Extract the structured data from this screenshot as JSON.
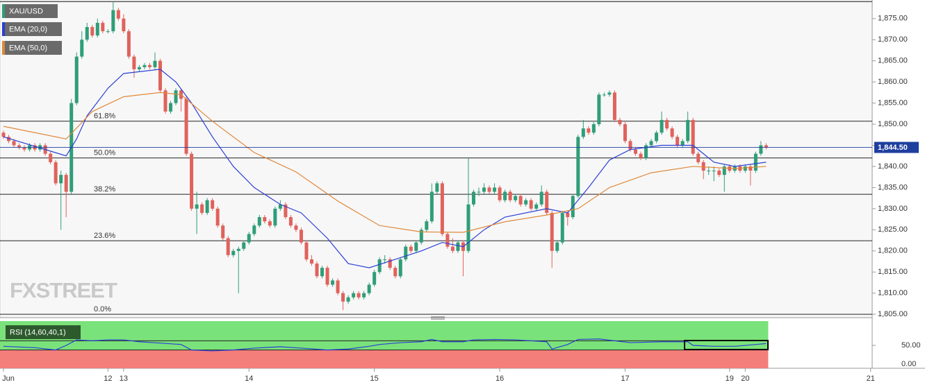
{
  "chart_data": {
    "type": "candlestick",
    "symbol": "XAU/USD",
    "colors": {
      "up": "#2f9e78",
      "down": "#e0625c",
      "symbol": "#2f9e78"
    },
    "candles": [
      [
        1848,
        1848.5,
        1846.5,
        1847
      ],
      [
        1847,
        1847.5,
        1845.5,
        1846
      ],
      [
        1846,
        1846.5,
        1844.5,
        1845
      ],
      [
        1845,
        1845.5,
        1844,
        1844.5
      ],
      [
        1844.5,
        1845,
        1843.5,
        1844
      ],
      [
        1844,
        1845.5,
        1843.5,
        1845
      ],
      [
        1845,
        1845.5,
        1843.5,
        1844
      ],
      [
        1844,
        1845.5,
        1843.5,
        1845
      ],
      [
        1845,
        1845.5,
        1842.5,
        1843
      ],
      [
        1843,
        1843.5,
        1840.5,
        1841
      ],
      [
        1841,
        1841.5,
        1835.5,
        1836
      ],
      [
        1836,
        1839,
        1825,
        1838
      ],
      [
        1838,
        1838.5,
        1828,
        1834
      ],
      [
        1834,
        1856,
        1833.5,
        1855
      ],
      [
        1855,
        1867,
        1854.5,
        1866
      ],
      [
        1866,
        1872,
        1865.5,
        1870
      ],
      [
        1870,
        1874,
        1869.5,
        1873
      ],
      [
        1873,
        1873.5,
        1870.5,
        1871
      ],
      [
        1871,
        1875,
        1870.5,
        1874
      ],
      [
        1874,
        1874.5,
        1871.5,
        1872
      ],
      [
        1872,
        1872.5,
        1871.5,
        1872
      ],
      [
        1872,
        1879,
        1871.5,
        1877
      ],
      [
        1877,
        1877.5,
        1874.5,
        1875
      ],
      [
        1875,
        1876,
        1871.5,
        1872
      ],
      [
        1872,
        1872.5,
        1865.5,
        1866
      ],
      [
        1866,
        1866.5,
        1861,
        1863
      ],
      [
        1863,
        1864,
        1862.5,
        1863.5
      ],
      [
        1863.5,
        1864.5,
        1863,
        1864
      ],
      [
        1864,
        1864.5,
        1863,
        1863.5
      ],
      [
        1863.5,
        1867,
        1863,
        1865
      ],
      [
        1865,
        1865.5,
        1857.5,
        1858
      ],
      [
        1858,
        1858.5,
        1852.5,
        1853
      ],
      [
        1853,
        1855.5,
        1852.5,
        1855
      ],
      [
        1855,
        1858.5,
        1854.5,
        1858
      ],
      [
        1858,
        1858.5,
        1853,
        1856
      ],
      [
        1856,
        1856.5,
        1842.5,
        1843
      ],
      [
        1843,
        1843.5,
        1829.5,
        1830
      ],
      [
        1830,
        1834,
        1824,
        1831
      ],
      [
        1831,
        1831.5,
        1828.5,
        1829
      ],
      [
        1829,
        1832.5,
        1828.5,
        1832
      ],
      [
        1832,
        1832.5,
        1829.5,
        1830
      ],
      [
        1830,
        1830.5,
        1825.5,
        1826
      ],
      [
        1826,
        1826.5,
        1822.5,
        1823
      ],
      [
        1823,
        1823.5,
        1818.5,
        1819
      ],
      [
        1819,
        1820.5,
        1818.5,
        1820
      ],
      [
        1820,
        1821,
        1810,
        1820.5
      ],
      [
        1820.5,
        1822.5,
        1820,
        1822
      ],
      [
        1822,
        1824.5,
        1821.5,
        1824
      ],
      [
        1824,
        1826.5,
        1823.5,
        1826
      ],
      [
        1826,
        1828.5,
        1825.5,
        1828
      ],
      [
        1828,
        1828.5,
        1826.5,
        1827
      ],
      [
        1827,
        1827.5,
        1825.5,
        1826
      ],
      [
        1826,
        1830.5,
        1825.5,
        1830
      ],
      [
        1830,
        1832,
        1829.5,
        1831
      ],
      [
        1831,
        1831.5,
        1827.5,
        1828
      ],
      [
        1828,
        1828.5,
        1825.5,
        1826
      ],
      [
        1826,
        1826.5,
        1824.5,
        1825
      ],
      [
        1825,
        1825.5,
        1821.5,
        1822
      ],
      [
        1822,
        1822.5,
        1817.5,
        1818
      ],
      [
        1818,
        1819,
        1816.5,
        1817
      ],
      [
        1817,
        1817.5,
        1813.5,
        1814
      ],
      [
        1814,
        1816.5,
        1813.5,
        1816
      ],
      [
        1816,
        1816.5,
        1811.5,
        1812
      ],
      [
        1812,
        1813.5,
        1811.5,
        1813
      ],
      [
        1813,
        1813.5,
        1809.5,
        1810
      ],
      [
        1810,
        1810.5,
        1806,
        1808
      ],
      [
        1808,
        1809.5,
        1807.5,
        1809
      ],
      [
        1809,
        1810.5,
        1808.5,
        1810
      ],
      [
        1810,
        1810.5,
        1808.5,
        1809
      ],
      [
        1809,
        1810.5,
        1808.5,
        1810
      ],
      [
        1810,
        1812.5,
        1809.5,
        1812
      ],
      [
        1812,
        1815.5,
        1811.5,
        1815
      ],
      [
        1815,
        1818.5,
        1814.5,
        1818
      ],
      [
        1818,
        1819,
        1817,
        1818
      ],
      [
        1818,
        1818.5,
        1815.5,
        1816
      ],
      [
        1816,
        1816.5,
        1813.5,
        1814
      ],
      [
        1814,
        1818.5,
        1813.5,
        1818
      ],
      [
        1818,
        1821.5,
        1817.5,
        1821
      ],
      [
        1821,
        1821.5,
        1819.5,
        1820
      ],
      [
        1820,
        1822.5,
        1819.5,
        1822
      ],
      [
        1822,
        1825.5,
        1821.5,
        1825
      ],
      [
        1825,
        1827.5,
        1824.5,
        1827
      ],
      [
        1827,
        1836,
        1826.5,
        1834
      ],
      [
        1834,
        1836.5,
        1833.5,
        1836
      ],
      [
        1836,
        1836.5,
        1823.5,
        1824
      ],
      [
        1824,
        1824.5,
        1820.5,
        1821
      ],
      [
        1821,
        1823,
        1819.5,
        1820
      ],
      [
        1820,
        1822.5,
        1819.5,
        1822
      ],
      [
        1822,
        1822.5,
        1814,
        1820
      ],
      [
        1820,
        1842,
        1819.5,
        1831
      ],
      [
        1831,
        1834.5,
        1830.5,
        1834
      ],
      [
        1834,
        1835,
        1833,
        1834
      ],
      [
        1834,
        1836,
        1833.5,
        1835
      ],
      [
        1835,
        1835.5,
        1833.5,
        1834
      ],
      [
        1834,
        1836,
        1833.5,
        1835
      ],
      [
        1835,
        1835.5,
        1831.5,
        1832
      ],
      [
        1832,
        1834.5,
        1831.5,
        1834
      ],
      [
        1834,
        1834.5,
        1831.5,
        1832
      ],
      [
        1832,
        1833.5,
        1831.5,
        1833
      ],
      [
        1833,
        1833.5,
        1830.5,
        1831
      ],
      [
        1831,
        1832.5,
        1830.5,
        1832
      ],
      [
        1832,
        1832.5,
        1829.5,
        1830
      ],
      [
        1830,
        1831.5,
        1829.5,
        1831
      ],
      [
        1831,
        1835.5,
        1830.5,
        1834
      ],
      [
        1834,
        1834.5,
        1828.5,
        1829
      ],
      [
        1829,
        1829.5,
        1816,
        1820
      ],
      [
        1820,
        1822.5,
        1819.5,
        1822
      ],
      [
        1822,
        1829.5,
        1821.5,
        1829
      ],
      [
        1829,
        1829.5,
        1826,
        1828
      ],
      [
        1828,
        1833.5,
        1827.5,
        1833
      ],
      [
        1833,
        1847.5,
        1832.5,
        1847
      ],
      [
        1847,
        1851,
        1846.5,
        1849
      ],
      [
        1849,
        1849.5,
        1847.5,
        1848
      ],
      [
        1848,
        1850.5,
        1847.5,
        1850
      ],
      [
        1850,
        1857.5,
        1849.5,
        1857
      ],
      [
        1857,
        1857.5,
        1856.5,
        1857
      ],
      [
        1857,
        1858,
        1856.5,
        1857.5
      ],
      [
        1857.5,
        1858,
        1850.5,
        1851
      ],
      [
        1851,
        1851.5,
        1849.5,
        1850
      ],
      [
        1850,
        1850.5,
        1845.5,
        1846
      ],
      [
        1846,
        1846.5,
        1843.5,
        1844
      ],
      [
        1844,
        1844.5,
        1842.5,
        1843
      ],
      [
        1843,
        1843.5,
        1841.5,
        1842
      ],
      [
        1842,
        1845.5,
        1841.5,
        1845
      ],
      [
        1845,
        1846.5,
        1844.5,
        1846
      ],
      [
        1846,
        1848.5,
        1845.5,
        1848
      ],
      [
        1848,
        1853,
        1847.5,
        1851
      ],
      [
        1851,
        1851.5,
        1848.5,
        1849
      ],
      [
        1849,
        1849.5,
        1846.5,
        1847
      ],
      [
        1847,
        1847.5,
        1844.5,
        1845
      ],
      [
        1845,
        1846.5,
        1844.5,
        1846
      ],
      [
        1846,
        1853,
        1845.5,
        1851
      ],
      [
        1851,
        1851.5,
        1842.5,
        1843
      ],
      [
        1843,
        1843.5,
        1840.5,
        1841
      ],
      [
        1841,
        1841.5,
        1837,
        1839
      ],
      [
        1839,
        1840,
        1838,
        1839
      ],
      [
        1839,
        1840,
        1836.5,
        1839
      ],
      [
        1839,
        1839.5,
        1837.5,
        1838
      ],
      [
        1838,
        1840.5,
        1834,
        1840
      ],
      [
        1840,
        1840.5,
        1838.5,
        1839
      ],
      [
        1839,
        1840.5,
        1838.5,
        1840
      ],
      [
        1840,
        1840.5,
        1838.5,
        1839
      ],
      [
        1839,
        1840.5,
        1838.5,
        1840
      ],
      [
        1840,
        1840.5,
        1835.5,
        1839
      ],
      [
        1839,
        1843.5,
        1838.5,
        1843
      ],
      [
        1843,
        1846,
        1842.5,
        1845
      ],
      [
        1845,
        1845.5,
        1844,
        1844.5
      ]
    ],
    "xlim": [
      -0.665,
      166.3
    ],
    "xticks": [
      {
        "value": 0,
        "label": "Jun"
      },
      {
        "value": 20,
        "label": "12"
      },
      {
        "value": 23,
        "label": "13"
      },
      {
        "value": 47,
        "label": "14"
      },
      {
        "value": 71,
        "label": "15"
      },
      {
        "value": 95,
        "label": "16"
      },
      {
        "value": 119,
        "label": "17"
      },
      {
        "value": 139,
        "label": "19"
      },
      {
        "value": 142,
        "label": "20"
      },
      {
        "value": 166,
        "label": "21"
      }
    ],
    "ylim": [
      1804.2,
      1879.4
    ],
    "yticks": [
      {
        "value": 1805,
        "label": "1,805.00"
      },
      {
        "value": 1810,
        "label": "1,810.00"
      },
      {
        "value": 1815,
        "label": "1,815.00"
      },
      {
        "value": 1820,
        "label": "1,820.00"
      },
      {
        "value": 1825,
        "label": "1,825.00"
      },
      {
        "value": 1830,
        "label": "1,830.00"
      },
      {
        "value": 1835,
        "label": "1,835.00"
      },
      {
        "value": 1840,
        "label": "1,840.00"
      },
      {
        "value": 1845,
        "label": "1,845.00"
      },
      {
        "value": 1850,
        "label": "1,850.00"
      },
      {
        "value": 1855,
        "label": "1,855.00"
      },
      {
        "value": 1860,
        "label": "1,860.00"
      },
      {
        "value": 1865,
        "label": "1,865.00"
      },
      {
        "value": 1870,
        "label": "1,870.00"
      },
      {
        "value": 1875,
        "label": "1,875.00"
      }
    ],
    "series": [
      {
        "name": "EMA (20,0)",
        "color": "#2a3fd4",
        "x": [
          0,
          12,
          14,
          16,
          20,
          23,
          30,
          33,
          36,
          40,
          44,
          48,
          53,
          57,
          62,
          66,
          70,
          75,
          80,
          84,
          88,
          92,
          96,
          104,
          108,
          112,
          116,
          120,
          126,
          132,
          136,
          140,
          146
        ],
        "values": [
          1847,
          1842.5,
          1846.5,
          1852,
          1858.5,
          1862,
          1863,
          1860,
          1855,
          1847,
          1840,
          1835,
          1831,
          1829,
          1823,
          1817,
          1816,
          1818,
          1820,
          1822,
          1821,
          1825,
          1828,
          1830,
          1829,
          1835,
          1841.5,
          1844,
          1845,
          1845,
          1841,
          1840,
          1841
        ]
      },
      {
        "name": "EMA (50,0)",
        "color": "#e0883a",
        "x": [
          0,
          12,
          17,
          23,
          30,
          34,
          40,
          48,
          56,
          64,
          72,
          80,
          88,
          96,
          104,
          110,
          116,
          124,
          132,
          140,
          146
        ],
        "values": [
          1849.5,
          1846.5,
          1853,
          1856.5,
          1857.5,
          1857,
          1850.7,
          1843.3,
          1838.7,
          1831.8,
          1826,
          1824.5,
          1824.4,
          1826.9,
          1828.5,
          1830,
          1835,
          1838.5,
          1840,
          1839.5,
          1840
        ]
      }
    ],
    "fib": {
      "values": [
        1879,
        1850.7,
        1842,
        1833.4,
        1822.4,
        1805
      ],
      "labels": [
        null,
        "61.8%",
        "50.0%",
        "38.2%",
        "23.6%",
        "0.0%"
      ]
    },
    "last_price": {
      "value": 1844.5,
      "label": "1,844.50",
      "color": "#1f3f9e"
    },
    "watermark": "FXSTREET",
    "rsi": {
      "name": "RSI (14,60,40,1)",
      "color": "#2a3fd4",
      "upper": 60,
      "lower": 40,
      "x": [
        0,
        6,
        10,
        12,
        14,
        17,
        20,
        23,
        26,
        30,
        34,
        36,
        40,
        44,
        48,
        53,
        57,
        62,
        66,
        70,
        72,
        76,
        80,
        82,
        84,
        88,
        90,
        94,
        98,
        104,
        105,
        108,
        110,
        114,
        117,
        120,
        126,
        131,
        132,
        136,
        140,
        144,
        146
      ],
      "values": [
        48,
        45,
        40,
        50,
        62,
        60,
        62,
        62,
        58,
        55,
        52,
        40,
        38,
        40,
        44,
        47,
        44,
        40,
        42,
        48,
        52,
        56,
        58,
        63,
        58,
        58,
        62,
        63,
        62,
        58,
        42,
        52,
        63,
        64,
        60,
        56,
        58,
        58,
        50,
        48,
        48,
        52,
        54
      ],
      "ylim": [
        0,
        100
      ],
      "yticks": [
        {
          "value": 0,
          "label": "0.00"
        },
        {
          "value": 50,
          "label": "50.00"
        }
      ]
    }
  }
}
